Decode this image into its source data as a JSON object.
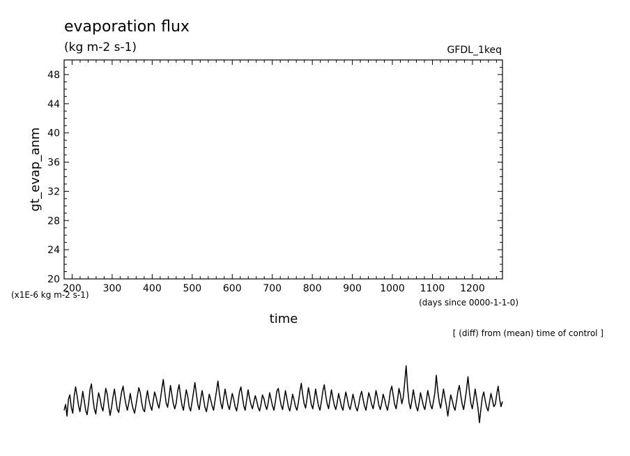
{
  "chart_data": {
    "type": "line",
    "title": "evaporation flux",
    "units": "(kg m-2 s-1)",
    "model": "GFDL_1keq",
    "ylabel": "gt_evap_anm",
    "xlabel": "time",
    "y_scale_note": "(x1E-6 kg m-2 s-1)",
    "x_unit_note": "(days since 0000-1-1-0)",
    "note": "[ (diff) from (mean) time of control ]",
    "xlim": [
      180,
      1275
    ],
    "ylim": [
      20,
      50
    ],
    "x_ticks": [
      200,
      300,
      400,
      500,
      600,
      700,
      800,
      900,
      1000,
      1100,
      1200
    ],
    "y_ticks": [
      20,
      24,
      28,
      32,
      36,
      40,
      44,
      48
    ],
    "grid": false,
    "series": [
      {
        "values": [
          2.0,
          2.8,
          1.2,
          3.5,
          4.1,
          2.4,
          1.6,
          3.9,
          5.2,
          4.0,
          2.7,
          1.8,
          3.1,
          4.6,
          3.3,
          2.0,
          1.4,
          2.9,
          4.8,
          5.6,
          3.7,
          2.2,
          1.5,
          3.0,
          4.4,
          3.6,
          2.5,
          1.9,
          3.4,
          5.0,
          4.2,
          2.6,
          1.3,
          2.4,
          3.8,
          4.9,
          3.5,
          2.1,
          1.7,
          3.2,
          4.5,
          5.3,
          3.9,
          2.8,
          2.0,
          3.0,
          4.3,
          3.1,
          2.2,
          1.6,
          2.7,
          4.0,
          5.1,
          4.4,
          3.0,
          2.1,
          1.8,
          3.6,
          4.7,
          3.4,
          2.6,
          2.0,
          3.3,
          4.5,
          3.8,
          2.9,
          2.3,
          3.5,
          4.9,
          6.2,
          4.5,
          3.0,
          2.4,
          3.7,
          5.4,
          4.1,
          2.9,
          2.2,
          3.0,
          4.6,
          5.5,
          4.0,
          2.7,
          2.0,
          3.4,
          4.8,
          3.9,
          2.5,
          1.9,
          3.1,
          4.4,
          5.8,
          4.3,
          2.8,
          2.1,
          3.5,
          4.7,
          3.6,
          2.4,
          1.8,
          2.9,
          4.2,
          3.4,
          2.6,
          2.0,
          3.3,
          4.6,
          6.0,
          4.4,
          3.0,
          2.2,
          3.6,
          4.9,
          3.8,
          2.7,
          2.1,
          3.2,
          4.3,
          3.5,
          2.5,
          1.9,
          3.0,
          4.5,
          5.2,
          3.9,
          2.6,
          2.0,
          3.4,
          4.8,
          3.7,
          2.8,
          2.2,
          3.1,
          4.0,
          3.3,
          2.4,
          1.9,
          2.8,
          4.1,
          3.6,
          2.7,
          2.1,
          3.0,
          4.4,
          3.5,
          2.6,
          2.0,
          3.2,
          4.6,
          5.0,
          3.8,
          2.7,
          2.1,
          3.3,
          4.7,
          3.6,
          2.5,
          1.9,
          2.9,
          4.2,
          3.4,
          2.5,
          2.0,
          3.1,
          4.5,
          5.7,
          4.2,
          2.9,
          2.3,
          3.6,
          5.1,
          4.0,
          2.8,
          2.2,
          3.4,
          4.9,
          3.7,
          2.6,
          2.0,
          3.2,
          4.6,
          5.5,
          4.1,
          2.9,
          2.2,
          3.5,
          4.8,
          3.7,
          2.7,
          2.1,
          3.0,
          4.3,
          3.4,
          2.5,
          2.0,
          3.3,
          4.5,
          3.6,
          2.6,
          2.1,
          3.1,
          4.2,
          3.3,
          2.4,
          1.9,
          2.8,
          3.9,
          4.6,
          3.5,
          2.6,
          2.0,
          3.2,
          4.4,
          3.7,
          2.8,
          2.2,
          3.3,
          4.7,
          3.8,
          2.7,
          2.1,
          3.0,
          4.2,
          3.5,
          2.6,
          2.0,
          3.1,
          4.6,
          5.3,
          4.0,
          2.8,
          2.2,
          3.5,
          5.0,
          4.1,
          2.9,
          3.8,
          5.9,
          8.1,
          5.0,
          3.0,
          2.2,
          3.4,
          4.8,
          3.6,
          2.5,
          1.9,
          3.0,
          4.4,
          3.5,
          2.6,
          2.1,
          3.3,
          4.7,
          3.8,
          2.7,
          2.2,
          3.2,
          4.5,
          6.8,
          4.6,
          3.1,
          2.3,
          3.6,
          4.9,
          3.7,
          2.6,
          1.2,
          2.7,
          4.1,
          3.4,
          2.5,
          2.0,
          3.2,
          4.6,
          5.4,
          4.0,
          2.8,
          2.1,
          3.4,
          4.8,
          6.6,
          4.5,
          3.0,
          2.2,
          3.5,
          4.9,
          3.6,
          2.3,
          0.3,
          2.2,
          3.8,
          4.5,
          3.3,
          2.4,
          1.9,
          3.1,
          4.3,
          3.4,
          2.5,
          2.8,
          4.2,
          5.3,
          3.6,
          2.5,
          3.2
        ]
      }
    ]
  }
}
